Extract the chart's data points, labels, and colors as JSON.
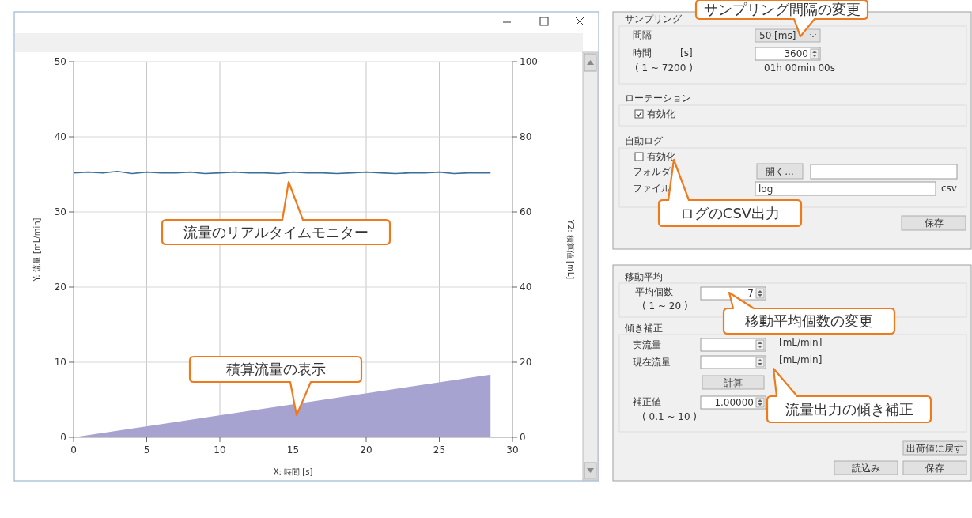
{
  "chart_data": [
    {
      "type": "line",
      "xlabel": "X: 時間 [s]",
      "ylabel": "Y: 流量 [mL/min]",
      "y2label": "Y2: 積算値 [mL]",
      "x": [
        0,
        1,
        2,
        3,
        4,
        5,
        6,
        7,
        8,
        9,
        10,
        11,
        12,
        13,
        14,
        15,
        16,
        17,
        18,
        19,
        20,
        21,
        22,
        23,
        24,
        25,
        26,
        27,
        28.5
      ],
      "xlim": [
        0,
        30
      ],
      "xticks": [
        0,
        5,
        10,
        15,
        20,
        25,
        30
      ],
      "ylim": [
        0,
        50
      ],
      "yticks": [
        0,
        10,
        20,
        30,
        40,
        50
      ],
      "y2lim": [
        0,
        100
      ],
      "y2ticks": [
        0,
        20,
        40,
        60,
        80,
        100
      ],
      "grid": true,
      "series": [
        {
          "type": "line",
          "color": "#3c6e98",
          "values": [
            35.2,
            35.3,
            35.2,
            35.4,
            35.1,
            35.3,
            35.2,
            35.2,
            35.3,
            35.1,
            35.2,
            35.3,
            35.2,
            35.2,
            35.1,
            35.3,
            35.2,
            35.2,
            35.1,
            35.2,
            35.3,
            35.2,
            35.1,
            35.2,
            35.2,
            35.3,
            35.1,
            35.2,
            35.2
          ]
        },
        {
          "type": "area",
          "axis": "y2",
          "color": "#a6a3d0",
          "x": [
            0,
            28.5
          ],
          "values": [
            0,
            16.7
          ]
        }
      ],
      "annotations": [
        "流量のリアルタイムモニター",
        "積算流量の表示"
      ]
    },
    {
      "type": "other",
      "annotations": [
        "サンプリング",
        "間隔",
        "50 [ms]",
        "時間",
        "[s]",
        "3600",
        "( 1 ~ 7200 )",
        "01h 00min 00s",
        "ローテーション",
        "有効化",
        "自動ログ",
        "有効化",
        "フォルダ",
        "開く...",
        "ファイル",
        "log",
        "csv",
        "保存",
        "サンプリング間隔の変更",
        "ログのCSV出力"
      ]
    },
    {
      "type": "other",
      "annotations": [
        "移動平均",
        "平均個数",
        "7",
        "( 1 ~ 20 )",
        "傾き補正",
        "実流量",
        "[mL/min]",
        "現在流量",
        "[mL/min]",
        "計算",
        "補正値",
        "1.00000",
        "( 0.1 ~ 10 )",
        "出荷値に戻す",
        "読込み",
        "保存",
        "移動平均個数の変更",
        "流量出力の傾き補正"
      ]
    }
  ]
}
